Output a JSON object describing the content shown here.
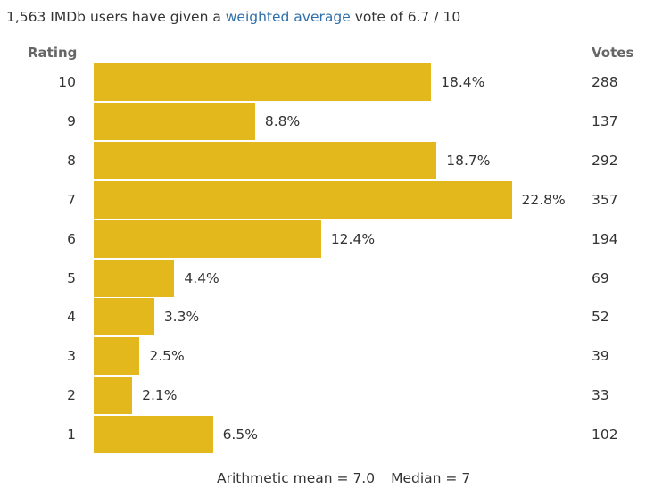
{
  "summary": {
    "prefix": "1,563 IMDb users have given a ",
    "link": "weighted average",
    "suffix": " vote of 6.7 / 10"
  },
  "headers": {
    "rating": "Rating",
    "votes": "Votes"
  },
  "stats": {
    "mean": "Arithmetic mean = 7.0",
    "median": "Median = 7"
  },
  "colors": {
    "bar": "#e3b81c",
    "link": "#2f6fab"
  },
  "chart_data": {
    "type": "bar",
    "orientation": "horizontal",
    "categories": [
      "10",
      "9",
      "8",
      "7",
      "6",
      "5",
      "4",
      "3",
      "2",
      "1"
    ],
    "values": [
      18.4,
      8.8,
      18.7,
      22.8,
      12.4,
      4.4,
      3.3,
      2.5,
      2.1,
      6.5
    ],
    "percent_labels": [
      "18.4%",
      "8.8%",
      "18.7%",
      "22.8%",
      "12.4%",
      "4.4%",
      "3.3%",
      "2.5%",
      "2.1%",
      "6.5%"
    ],
    "votes": [
      "288",
      "137",
      "292",
      "357",
      "194",
      "69",
      "52",
      "39",
      "33",
      "102"
    ],
    "grid": false
  }
}
